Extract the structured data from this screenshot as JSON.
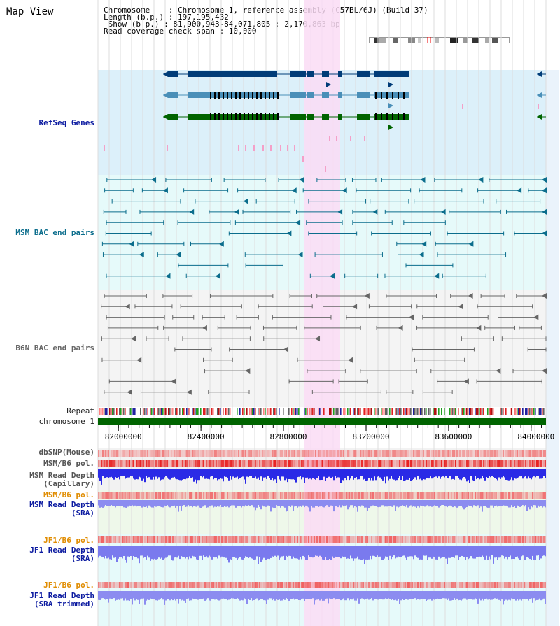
{
  "view": {
    "title": "Map View",
    "info_lines": [
      "Chromosome    : Chromosome 1, reference assembly (C57BL/6J) (Build 37)",
      "Length (b.p.) : 197,195,432",
      " Show (b.p.) : 81,900,943-84,071,805 : 2,170,863 bp",
      "Read coverage check span : 10,000"
    ]
  },
  "tracks": {
    "refseq": "RefSeq Genes",
    "msm_bac": "MSM BAC end pairs",
    "b6n_bac": "B6N BAC end pairs",
    "repeat": "Repeat",
    "chromosome": "chromosome 1",
    "dbsnp": "dbSNP(Mouse)",
    "msm_pol": "MSM/B6 pol.",
    "msm_depth_cap_1": "MSM Read Depth",
    "msm_depth_cap_2": "(Capillary)",
    "msm_pol_sra": "MSM/B6 pol.",
    "msm_depth_sra_1": "MSM Read Depth",
    "msm_depth_sra_2": "(SRA)",
    "jf1_pol": "JF1/B6 pol.",
    "jf1_depth_sra_1": "JF1 Read Depth",
    "jf1_depth_sra_2": "(SRA)",
    "jf1_pol_trim": "JF1/B6 pol.",
    "jf1_depth_trim_1": "JF1 Read Depth",
    "jf1_depth_trim_2": "(SRA trimmed)"
  },
  "axis": {
    "tick_labels": [
      "82000000",
      "82400000",
      "82800000",
      "83200000",
      "83600000",
      "84000000"
    ],
    "tick_values": [
      82000000,
      82400000,
      82800000,
      83200000,
      83600000,
      84000000
    ]
  },
  "colors": {
    "refseq_bg": "#dcf0fa",
    "msm_bg": "#e6fafa",
    "b6n_bg": "#f4f4f4",
    "highlight": "#fadcf5",
    "gene_dark": "#003c78",
    "gene_mid": "#4a8fb8",
    "gene_green": "#006400",
    "msm_line": "#0b6d8c",
    "b6n_line": "#666666",
    "chrom_bar": "#006400",
    "depth_blue": "#2a2ae6",
    "depth_light": "#8c8cf0"
  }
}
